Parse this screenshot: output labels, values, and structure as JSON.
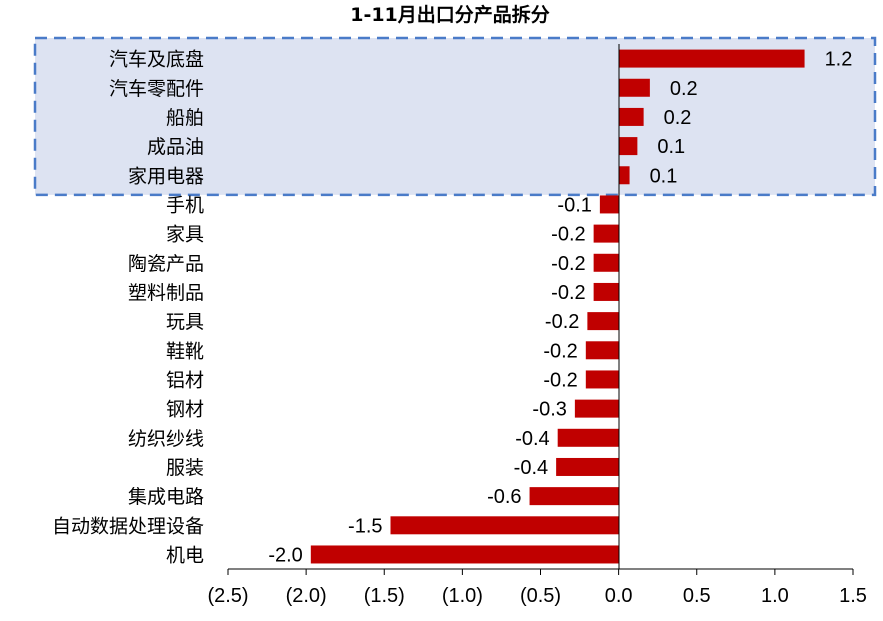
{
  "chart_data": {
    "type": "bar",
    "orientation": "horizontal",
    "title": "1-11月出口分产品拆分",
    "categories": [
      "汽车及底盘",
      "汽车零配件",
      "船舶",
      "成品油",
      "家用电器",
      "手机",
      "家具",
      "陶瓷产品",
      "塑料制品",
      "玩具",
      "鞋靴",
      "铝材",
      "钢材",
      "纺织纱线",
      "服装",
      "集成电路",
      "自动数据处理设备",
      "机电"
    ],
    "values": [
      1.2,
      0.2,
      0.2,
      0.1,
      0.1,
      -0.1,
      -0.2,
      -0.2,
      -0.2,
      -0.2,
      -0.2,
      -0.2,
      -0.3,
      -0.4,
      -0.4,
      -0.6,
      -1.5,
      -2.0
    ],
    "value_labels": [
      "1.2",
      "0.2",
      "0.2",
      "0.1",
      "0.1",
      "-0.1",
      "-0.2",
      "-0.2",
      "-0.2",
      "-0.2",
      "-0.2",
      "-0.2",
      "-0.3",
      "-0.4",
      "-0.4",
      "-0.6",
      "-1.5",
      "-2.0"
    ],
    "bar_lengths": [
      1.19,
      0.2,
      0.16,
      0.12,
      0.07,
      -0.12,
      -0.16,
      -0.16,
      -0.16,
      -0.2,
      -0.21,
      -0.21,
      -0.28,
      -0.39,
      -0.4,
      -0.57,
      -1.46,
      -1.97
    ],
    "xlim": [
      -2.5,
      1.5
    ],
    "xticks": [
      -2.5,
      -2.0,
      -1.5,
      -1.0,
      -0.5,
      0.0,
      0.5,
      1.0,
      1.5
    ],
    "xtick_labels": [
      "(2.5)",
      "(2.0)",
      "(1.5)",
      "(1.0)",
      "(0.5)",
      "0.0",
      "0.5",
      "1.0",
      "1.5"
    ],
    "xlabel": "",
    "ylabel": "",
    "grid": false,
    "bar_color": "#c00000",
    "highlight": {
      "categories": [
        "汽车及底盘",
        "汽车零配件",
        "船舶",
        "成品油",
        "家用电器"
      ],
      "fill": "#dde3f2",
      "border": "#4a7bc8"
    }
  }
}
